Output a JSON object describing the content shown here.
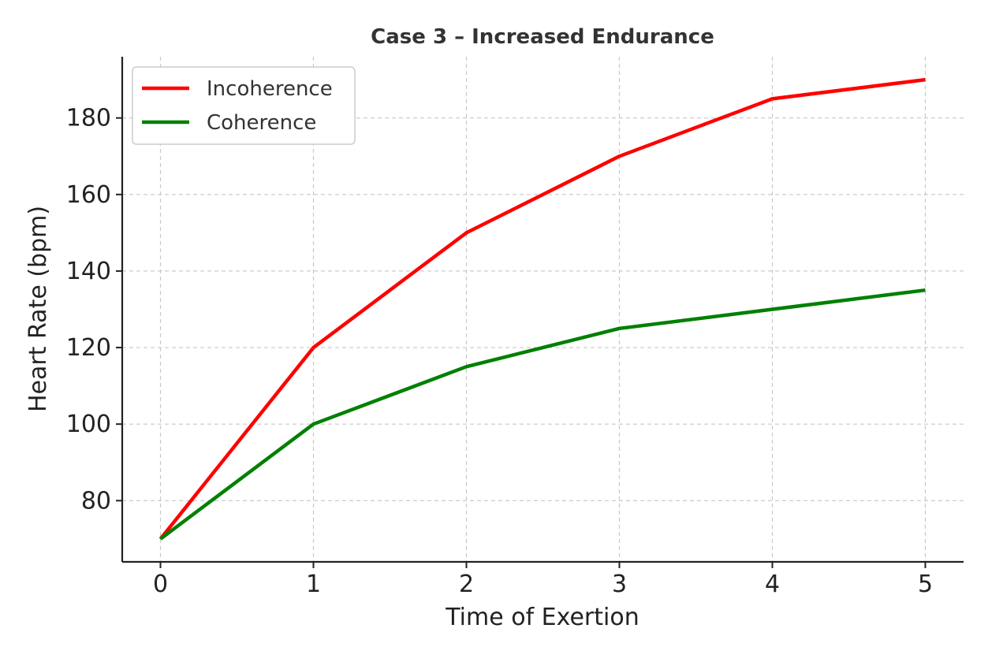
{
  "chart_data": {
    "type": "line",
    "title": "Case 3 – Increased Endurance",
    "xlabel": "Time of Exertion",
    "ylabel": "Heart Rate (bpm)",
    "x": [
      0,
      1,
      2,
      3,
      4,
      5
    ],
    "xticks": [
      "0",
      "1",
      "2",
      "3",
      "4",
      "5"
    ],
    "yticks": [
      "80",
      "100",
      "120",
      "140",
      "160",
      "180"
    ],
    "xlim": [
      -0.25,
      5.25
    ],
    "ylim": [
      64,
      196
    ],
    "grid": true,
    "legend_position": "top-left",
    "series": [
      {
        "name": "Incoherence",
        "color": "#ff0000",
        "values": [
          70,
          120,
          150,
          170,
          185,
          190
        ]
      },
      {
        "name": "Coherence",
        "color": "#008000",
        "values": [
          70,
          100,
          115,
          125,
          130,
          135
        ]
      }
    ]
  }
}
